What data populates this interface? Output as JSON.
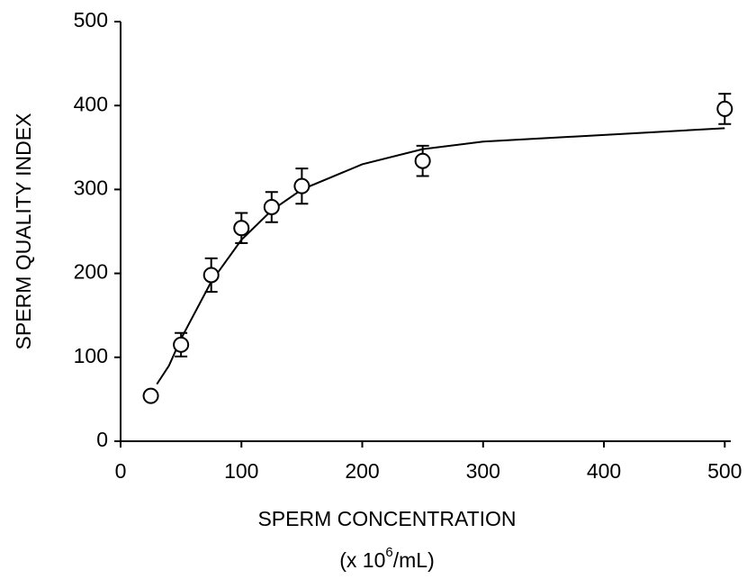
{
  "chart_data": {
    "type": "scatter",
    "xlabel": "SPERM CONCENTRATION",
    "xlabel_unit": {
      "before": "(x 10",
      "sup": "6",
      "after": "/mL)"
    },
    "ylabel": "SPERM QUALITY INDEX",
    "xlim": [
      0,
      505
    ],
    "ylim": [
      0,
      500
    ],
    "xticks": [
      0,
      100,
      200,
      300,
      400,
      500
    ],
    "yticks": [
      0,
      100,
      200,
      300,
      400,
      500
    ],
    "color": "#000000",
    "points": {
      "x": [
        25,
        50,
        75,
        100,
        125,
        150,
        250,
        500
      ],
      "values": [
        54,
        115,
        198,
        254,
        279,
        304,
        334,
        396
      ],
      "errors": [
        4,
        14,
        20,
        18,
        18,
        21,
        18,
        18
      ]
    },
    "fit": {
      "x": [
        30,
        40,
        50,
        75,
        100,
        125,
        150,
        200,
        250,
        300,
        400,
        500
      ],
      "values": [
        68,
        90,
        122,
        190,
        240,
        275,
        300,
        330,
        348,
        357,
        365,
        373
      ]
    }
  }
}
